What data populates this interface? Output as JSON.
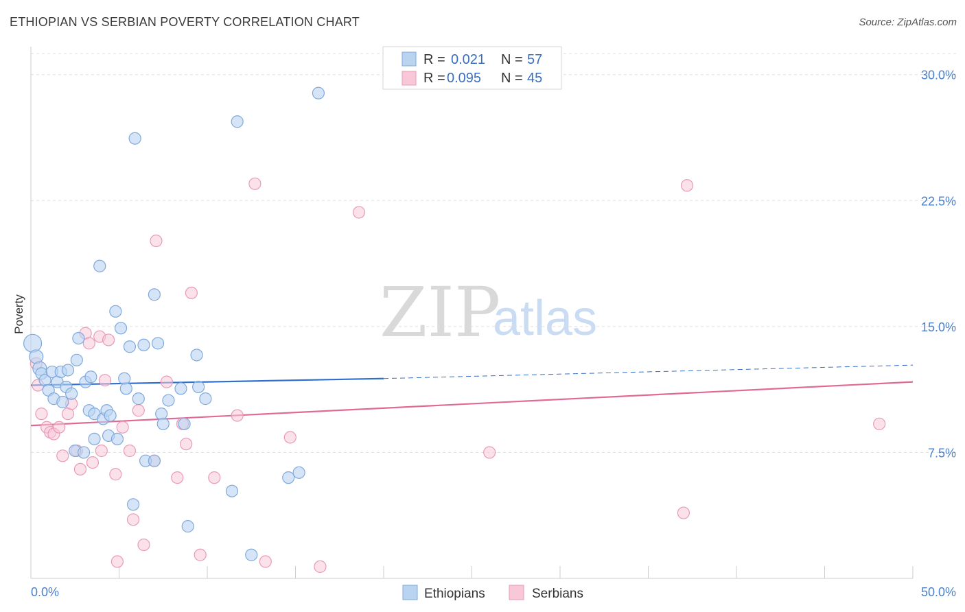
{
  "title": "ETHIOPIAN VS SERBIAN POVERTY CORRELATION CHART",
  "source": "Source: ZipAtlas.com",
  "watermark": {
    "zip": "ZIP",
    "atlas": "atlas"
  },
  "colors": {
    "ethiopians_fill": "#b9d3f1",
    "ethiopians_stroke": "#7fa9dd",
    "ethiopians_line": "#2f6fcf",
    "serbians_fill": "#f8c8d8",
    "serbians_stroke": "#e99bb6",
    "serbians_line": "#e06a95",
    "grid": "#dddddd",
    "axis_text": "#4a7fcb"
  },
  "legend": {
    "rows": [
      {
        "r_label": "R =",
        "r_value": "0.021",
        "n_label": "N =",
        "n_value": "57"
      },
      {
        "r_label": "R =",
        "r_value": "0.095",
        "n_label": "N =",
        "n_value": "45"
      }
    ]
  },
  "chart_data": {
    "type": "scatter",
    "title": "ETHIOPIAN VS SERBIAN POVERTY CORRELATION CHART",
    "xlabel": "",
    "ylabel": "Poverty",
    "xlim": [
      0,
      50
    ],
    "ylim": [
      0,
      31.5
    ],
    "x_tick_labels": [
      "0.0%",
      "50.0%"
    ],
    "y_ticks": [
      7.5,
      15.0,
      22.5,
      30.0
    ],
    "y_tick_labels": [
      "7.5%",
      "15.0%",
      "22.5%",
      "30.0%"
    ],
    "legend_position": "top-center",
    "series": [
      {
        "name": "Ethiopians",
        "r": 0.021,
        "n": 57,
        "trend": {
          "x0": 0,
          "y0": 11.5,
          "x1": 20,
          "y1": 11.9,
          "dashed_to_x": 50,
          "dashed_to_y": 12.7
        },
        "points": [
          [
            0.1,
            14.0
          ],
          [
            0.3,
            13.2
          ],
          [
            0.5,
            12.5
          ],
          [
            0.6,
            12.2
          ],
          [
            0.8,
            11.8
          ],
          [
            1.0,
            11.2
          ],
          [
            1.2,
            12.3
          ],
          [
            1.3,
            10.7
          ],
          [
            1.5,
            11.7
          ],
          [
            1.7,
            12.3
          ],
          [
            1.8,
            10.5
          ],
          [
            2.0,
            11.4
          ],
          [
            2.1,
            12.4
          ],
          [
            2.3,
            11.0
          ],
          [
            2.6,
            13.0
          ],
          [
            2.7,
            14.3
          ],
          [
            3.1,
            11.7
          ],
          [
            3.3,
            10.0
          ],
          [
            3.4,
            12.0
          ],
          [
            3.6,
            9.8
          ],
          [
            3.9,
            18.6
          ],
          [
            4.1,
            9.5
          ],
          [
            4.3,
            10.0
          ],
          [
            4.5,
            9.7
          ],
          [
            4.4,
            8.5
          ],
          [
            4.8,
            15.9
          ],
          [
            4.9,
            8.3
          ],
          [
            5.1,
            14.9
          ],
          [
            5.3,
            11.9
          ],
          [
            5.4,
            11.3
          ],
          [
            5.6,
            13.8
          ],
          [
            5.9,
            26.2
          ],
          [
            6.1,
            10.7
          ],
          [
            6.4,
            13.9
          ],
          [
            6.5,
            7.0
          ],
          [
            7.0,
            7.0
          ],
          [
            7.0,
            16.9
          ],
          [
            7.2,
            14.0
          ],
          [
            7.4,
            9.8
          ],
          [
            7.5,
            9.2
          ],
          [
            7.8,
            10.6
          ],
          [
            8.5,
            11.3
          ],
          [
            8.7,
            9.2
          ],
          [
            8.9,
            3.1
          ],
          [
            9.4,
            13.3
          ],
          [
            9.5,
            11.4
          ],
          [
            9.9,
            10.7
          ],
          [
            11.4,
            5.2
          ],
          [
            11.7,
            27.2
          ],
          [
            12.5,
            1.4
          ],
          [
            14.6,
            6.0
          ],
          [
            15.2,
            6.3
          ],
          [
            16.3,
            28.9
          ],
          [
            2.5,
            7.6
          ],
          [
            3.0,
            7.5
          ],
          [
            3.6,
            8.3
          ],
          [
            5.8,
            4.4
          ]
        ]
      },
      {
        "name": "Serbians",
        "r": 0.095,
        "n": 45,
        "trend": {
          "x0": 0,
          "y0": 9.1,
          "x1": 50,
          "y1": 11.7
        },
        "points": [
          [
            0.3,
            12.8
          ],
          [
            0.4,
            11.5
          ],
          [
            0.6,
            9.8
          ],
          [
            0.9,
            9.0
          ],
          [
            1.1,
            8.7
          ],
          [
            1.3,
            8.6
          ],
          [
            1.6,
            9.0
          ],
          [
            1.8,
            7.3
          ],
          [
            2.1,
            9.8
          ],
          [
            2.3,
            10.4
          ],
          [
            2.6,
            7.6
          ],
          [
            2.8,
            6.5
          ],
          [
            3.1,
            14.6
          ],
          [
            3.3,
            14.0
          ],
          [
            3.5,
            6.9
          ],
          [
            3.9,
            14.4
          ],
          [
            4.0,
            7.6
          ],
          [
            4.2,
            11.8
          ],
          [
            4.4,
            14.2
          ],
          [
            4.8,
            6.2
          ],
          [
            4.9,
            1.0
          ],
          [
            5.2,
            9.0
          ],
          [
            5.6,
            7.6
          ],
          [
            5.8,
            3.5
          ],
          [
            6.1,
            10.0
          ],
          [
            6.4,
            2.0
          ],
          [
            7.0,
            7.0
          ],
          [
            7.1,
            20.1
          ],
          [
            7.7,
            11.7
          ],
          [
            8.3,
            6.0
          ],
          [
            8.6,
            9.2
          ],
          [
            8.8,
            8.0
          ],
          [
            9.1,
            17.0
          ],
          [
            9.6,
            1.4
          ],
          [
            10.4,
            6.0
          ],
          [
            11.7,
            9.7
          ],
          [
            12.7,
            23.5
          ],
          [
            13.3,
            1.0
          ],
          [
            14.7,
            8.4
          ],
          [
            16.4,
            0.7
          ],
          [
            18.6,
            21.8
          ],
          [
            26.0,
            7.5
          ],
          [
            37.0,
            3.9
          ],
          [
            37.2,
            23.4
          ],
          [
            48.1,
            9.2
          ]
        ]
      }
    ]
  }
}
